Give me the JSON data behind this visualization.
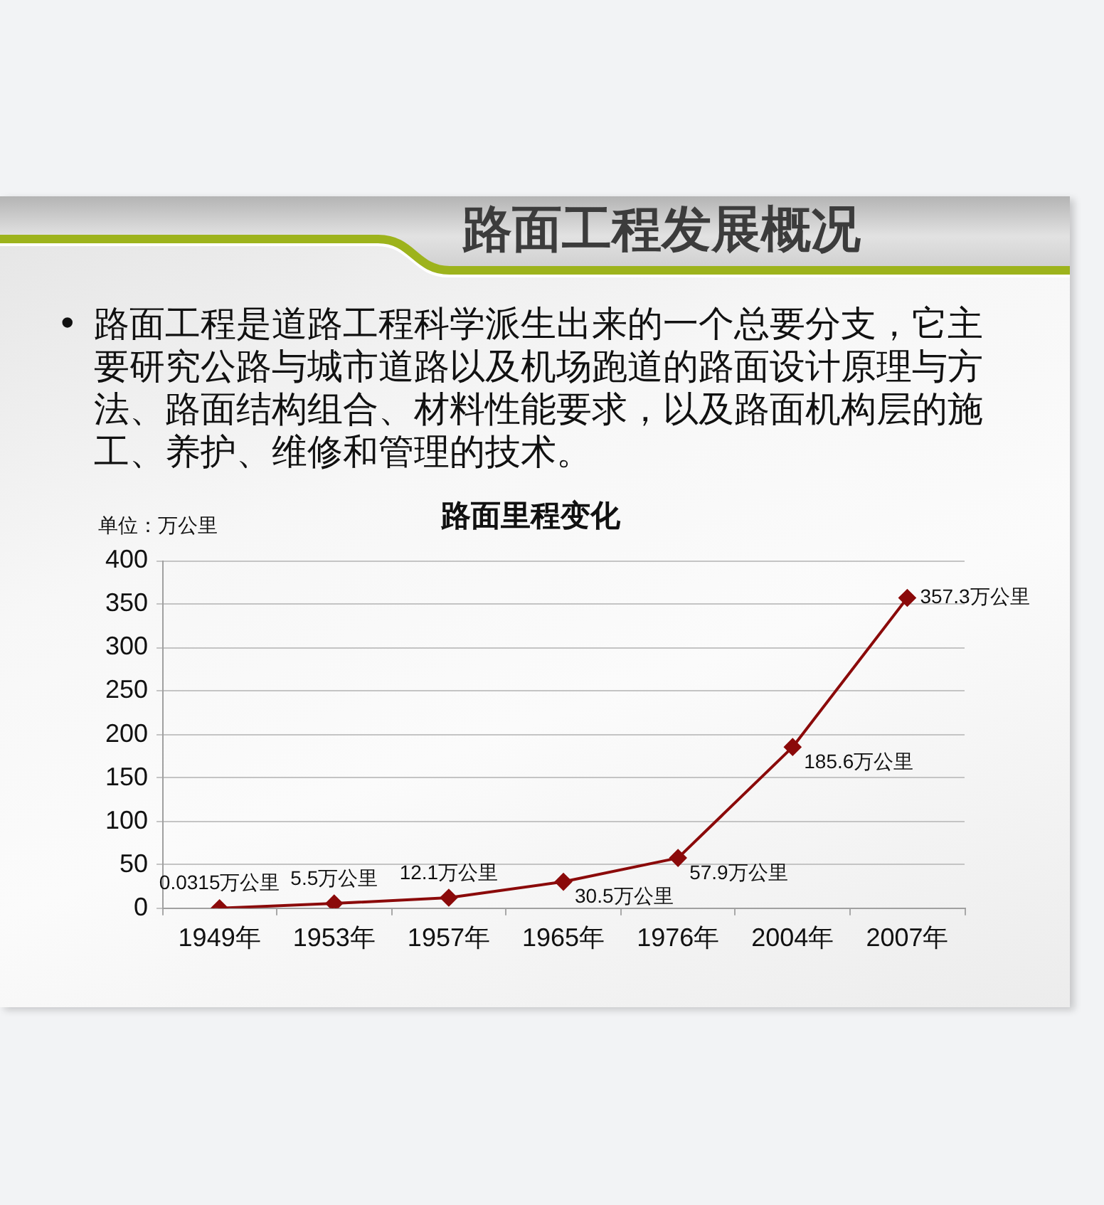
{
  "chart_data": {
    "type": "line",
    "title": "路面工程发展概况",
    "subtitle": "路面里程变化",
    "ylabel": "单位：万公里",
    "annotations": [
      "• 路面工程是道路工程科学派生出来的一个总要分支，它主要研究公路与城市道路以及机场跑道的路面设计原理与方法、路面结构组合、材料性能要求，以及路面机构层的施工、养护、维修和管理的技术。"
    ],
    "categories": [
      "1949年",
      "1953年",
      "1957年",
      "1965年",
      "1976年",
      "2004年",
      "2007年"
    ],
    "values": [
      0.0315,
      5.5,
      12.1,
      30.5,
      57.9,
      185.6,
      357.3
    ],
    "value_labels": [
      "0.0315万公里",
      "5.5万公里",
      "12.1万公里",
      "30.5万公里",
      "57.9万公里",
      "185.6万公里",
      "357.3万公里"
    ],
    "color": "#8b0a0a",
    "ylim": [
      0,
      400
    ],
    "yticks": [
      0,
      50,
      100,
      150,
      200,
      250,
      300,
      350,
      400
    ],
    "grid": "y",
    "legend": false,
    "marker": "diamond",
    "line_style": "solid"
  }
}
